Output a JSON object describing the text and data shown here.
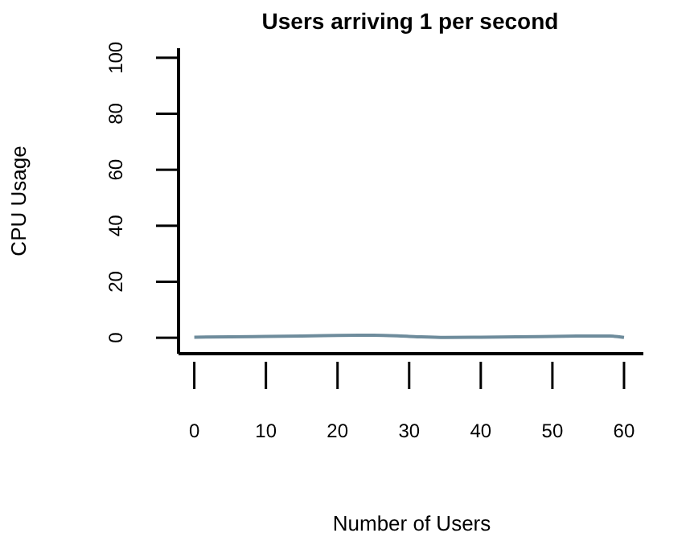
{
  "chart_data": {
    "type": "line",
    "title": "Users arriving 1 per second",
    "xlabel": "Number of Users",
    "ylabel": "CPU Usage",
    "x": [
      0,
      5,
      10,
      15,
      20,
      25,
      30,
      35,
      40,
      45,
      50,
      55,
      58,
      60
    ],
    "series": [
      {
        "color": "#6e8c9c",
        "values": [
          0.2,
          0.3,
          0.5,
          0.6,
          0.8,
          0.9,
          0.5,
          0.1,
          0.2,
          0.3,
          0.5,
          0.6,
          0.6,
          0.1
        ]
      }
    ],
    "xlim": [
      -2.2,
      62.7
    ],
    "ylim": [
      -5.7,
      103.4
    ],
    "xticks": [
      0,
      10,
      20,
      30,
      40,
      50,
      60
    ],
    "yticks": [
      0,
      20,
      40,
      60,
      80,
      100
    ],
    "grid": false,
    "marker": "none",
    "line_style": "solid"
  }
}
